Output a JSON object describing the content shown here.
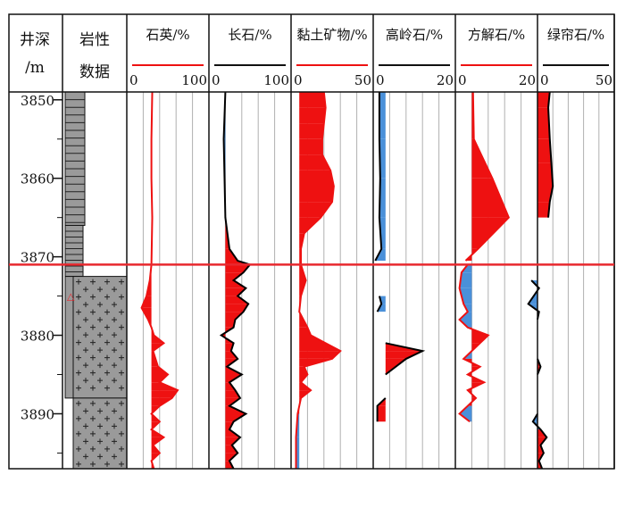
{
  "header": {
    "depth_label_line1": "井深",
    "depth_label_line2": "/m",
    "litho_label_line1": "岩性",
    "litho_label_line2": "数据"
  },
  "colors": {
    "red": "#ee1111",
    "blue": "#4a90d9",
    "grid": "#b0b0b0",
    "lithology_fill": "#9a9a9a",
    "marker_line": "#e8282e"
  },
  "depth_axis": {
    "top": 3849,
    "bottom": 3897,
    "ticks": [
      "3850",
      "3860",
      "3870",
      "3880",
      "3890"
    ],
    "tick_values": [
      3850,
      3860,
      3870,
      3880,
      3890
    ],
    "marker_depth": 3871,
    "marker_symbol": "△",
    "marker_symbol_depth": 3875
  },
  "lithology": [
    {
      "top": 3849,
      "bottom": 3866,
      "type": "sandstone"
    },
    {
      "top": 3866,
      "bottom": 3872.5,
      "type": "sandstone-thin"
    },
    {
      "top": 3872.5,
      "bottom": 3888,
      "type": "volcanic-mixed"
    },
    {
      "top": 3888,
      "bottom": 3897,
      "type": "volcanic"
    }
  ],
  "chart_data": {
    "type": "area",
    "y_axis": "depth (m)",
    "tracks": [
      {
        "name": "石英/%",
        "min_label": "0",
        "max_label": "100",
        "min": 0,
        "max": 100,
        "fill_color": "#ee1111",
        "ref": 30,
        "line_color": "#ee1111",
        "points": [
          [
            3849,
            31
          ],
          [
            3855,
            30
          ],
          [
            3860,
            30
          ],
          [
            3865,
            31
          ],
          [
            3871,
            30
          ],
          [
            3873,
            28
          ],
          [
            3875,
            24
          ],
          [
            3876.5,
            18
          ],
          [
            3878,
            26
          ],
          [
            3879,
            30
          ],
          [
            3880,
            33
          ],
          [
            3881,
            45
          ],
          [
            3882,
            32
          ],
          [
            3884,
            38
          ],
          [
            3885,
            50
          ],
          [
            3886,
            40
          ],
          [
            3887,
            62
          ],
          [
            3888,
            55
          ],
          [
            3889,
            40
          ],
          [
            3890,
            30
          ],
          [
            3891,
            40
          ],
          [
            3892,
            30
          ],
          [
            3893,
            45
          ],
          [
            3894,
            32
          ],
          [
            3895,
            40
          ],
          [
            3896,
            30
          ],
          [
            3897,
            33
          ]
        ]
      },
      {
        "name": "长石/%",
        "min_label": "0",
        "max_label": "100",
        "min": 0,
        "max": 100,
        "fill_color": "#ee1111",
        "neg_color": "#4a90d9",
        "ref": 20,
        "line_color": "#000000",
        "points": [
          [
            3849,
            20
          ],
          [
            3855,
            18
          ],
          [
            3860,
            19
          ],
          [
            3865,
            20
          ],
          [
            3869,
            25
          ],
          [
            3870.5,
            35
          ],
          [
            3871,
            50
          ],
          [
            3872,
            42
          ],
          [
            3873,
            30
          ],
          [
            3874,
            45
          ],
          [
            3875,
            35
          ],
          [
            3876,
            48
          ],
          [
            3877,
            42
          ],
          [
            3878,
            32
          ],
          [
            3879,
            30
          ],
          [
            3880,
            15
          ],
          [
            3881,
            30
          ],
          [
            3882,
            27
          ],
          [
            3883,
            35
          ],
          [
            3884,
            22
          ],
          [
            3885,
            40
          ],
          [
            3886,
            25
          ],
          [
            3887,
            32
          ],
          [
            3888,
            38
          ],
          [
            3889,
            25
          ],
          [
            3890,
            45
          ],
          [
            3891,
            30
          ],
          [
            3892,
            25
          ],
          [
            3893,
            38
          ],
          [
            3894,
            28
          ],
          [
            3895,
            35
          ],
          [
            3896,
            25
          ],
          [
            3897,
            30
          ]
        ]
      },
      {
        "name": "黏土矿物/%",
        "min_label": "0",
        "max_label": "50",
        "min": 0,
        "max": 50,
        "fill_color": "#ee1111",
        "neg_color": "#4a90d9",
        "ref": 5,
        "line_color": "#ee1111",
        "points": [
          [
            3849,
            20
          ],
          [
            3851,
            21
          ],
          [
            3853,
            20
          ],
          [
            3855,
            19
          ],
          [
            3857,
            19
          ],
          [
            3859,
            24
          ],
          [
            3861,
            26
          ],
          [
            3863,
            25
          ],
          [
            3865,
            18
          ],
          [
            3867,
            8
          ],
          [
            3869,
            6
          ],
          [
            3871,
            6
          ],
          [
            3873,
            9
          ],
          [
            3875,
            6
          ],
          [
            3877,
            5
          ],
          [
            3879,
            10
          ],
          [
            3880,
            12
          ],
          [
            3882,
            30
          ],
          [
            3883,
            25
          ],
          [
            3884,
            8
          ],
          [
            3885,
            10
          ],
          [
            3886,
            6
          ],
          [
            3887,
            12
          ],
          [
            3888,
            6
          ],
          [
            3890,
            4
          ],
          [
            3893,
            3
          ],
          [
            3897,
            3
          ]
        ]
      },
      {
        "name": "高岭石/%",
        "min_label": "0",
        "max_label": "20",
        "min": 0,
        "max": 20,
        "fill_color": "#4a90d9",
        "ref": 3,
        "line_color": "#000000",
        "segments": [
          [
            [
              3849,
              1.5
            ],
            [
              3855,
              1.5
            ],
            [
              3860,
              1.7
            ],
            [
              3865,
              1.5
            ],
            [
              3869,
              2
            ],
            [
              3870.5,
              0.5
            ]
          ],
          [
            [
              3875,
              1.5
            ],
            [
              3876,
              2
            ],
            [
              3877,
              1
            ]
          ]
        ],
        "red_segments": [
          [
            [
              3881,
              3
            ],
            [
              3882,
              12
            ],
            [
              3883,
              8
            ],
            [
              3885,
              3
            ]
          ],
          [
            [
              3888,
              3
            ],
            [
              3889,
              1
            ],
            [
              3891,
              1
            ]
          ]
        ]
      },
      {
        "name": "方解石/%",
        "min_label": "0",
        "max_label": "20",
        "min": 0,
        "max": 20,
        "fill_color": "#ee1111",
        "neg_color": "#4a90d9",
        "ref": 4,
        "line_color": "#ee1111",
        "segments": [
          [
            [
              3849,
              4.3
            ],
            [
              3855,
              4.5
            ],
            [
              3860,
              9
            ],
            [
              3865,
              13
            ],
            [
              3869,
              5.5
            ],
            [
              3870.5,
              2.5
            ]
          ],
          [
            [
              3871,
              3
            ],
            [
              3872,
              1.5
            ],
            [
              3874,
              1
            ],
            [
              3876,
              2
            ],
            [
              3877,
              3
            ],
            [
              3878,
              1
            ],
            [
              3879,
              3
            ],
            [
              3880,
              8
            ],
            [
              3881,
              6
            ],
            [
              3882,
              4
            ],
            [
              3883,
              2
            ],
            [
              3884,
              6
            ],
            [
              3885,
              3
            ],
            [
              3886,
              7
            ],
            [
              3887,
              3
            ],
            [
              3888,
              5
            ],
            [
              3889,
              3
            ],
            [
              3890,
              1
            ],
            [
              3891,
              3.5
            ]
          ]
        ]
      },
      {
        "name": "绿帘石/%",
        "min_label": "0",
        "max_label": "50",
        "min": 0,
        "max": 50,
        "fill_color": "#ee1111",
        "neg_color": "#4a90d9",
        "ref": 0,
        "line_color": "#000000",
        "segments": [
          [
            [
              3849,
              8
            ],
            [
              3851,
              7
            ],
            [
              3855,
              8
            ],
            [
              3858,
              9
            ],
            [
              3861,
              10
            ],
            [
              3863,
              8
            ],
            [
              3865,
              7
            ]
          ],
          [
            [
              3873,
              -4
            ],
            [
              3874,
              1
            ],
            [
              3876,
              -6
            ],
            [
              3877,
              1
            ],
            [
              3878,
              0
            ]
          ],
          [
            [
              3883,
              0
            ],
            [
              3884,
              2
            ],
            [
              3885,
              0
            ]
          ],
          [
            [
              3890,
              0
            ],
            [
              3891,
              -3
            ],
            [
              3892,
              2
            ],
            [
              3893,
              6
            ],
            [
              3894,
              2
            ],
            [
              3895,
              4
            ],
            [
              3896,
              1
            ],
            [
              3897,
              3
            ]
          ]
        ]
      }
    ]
  }
}
